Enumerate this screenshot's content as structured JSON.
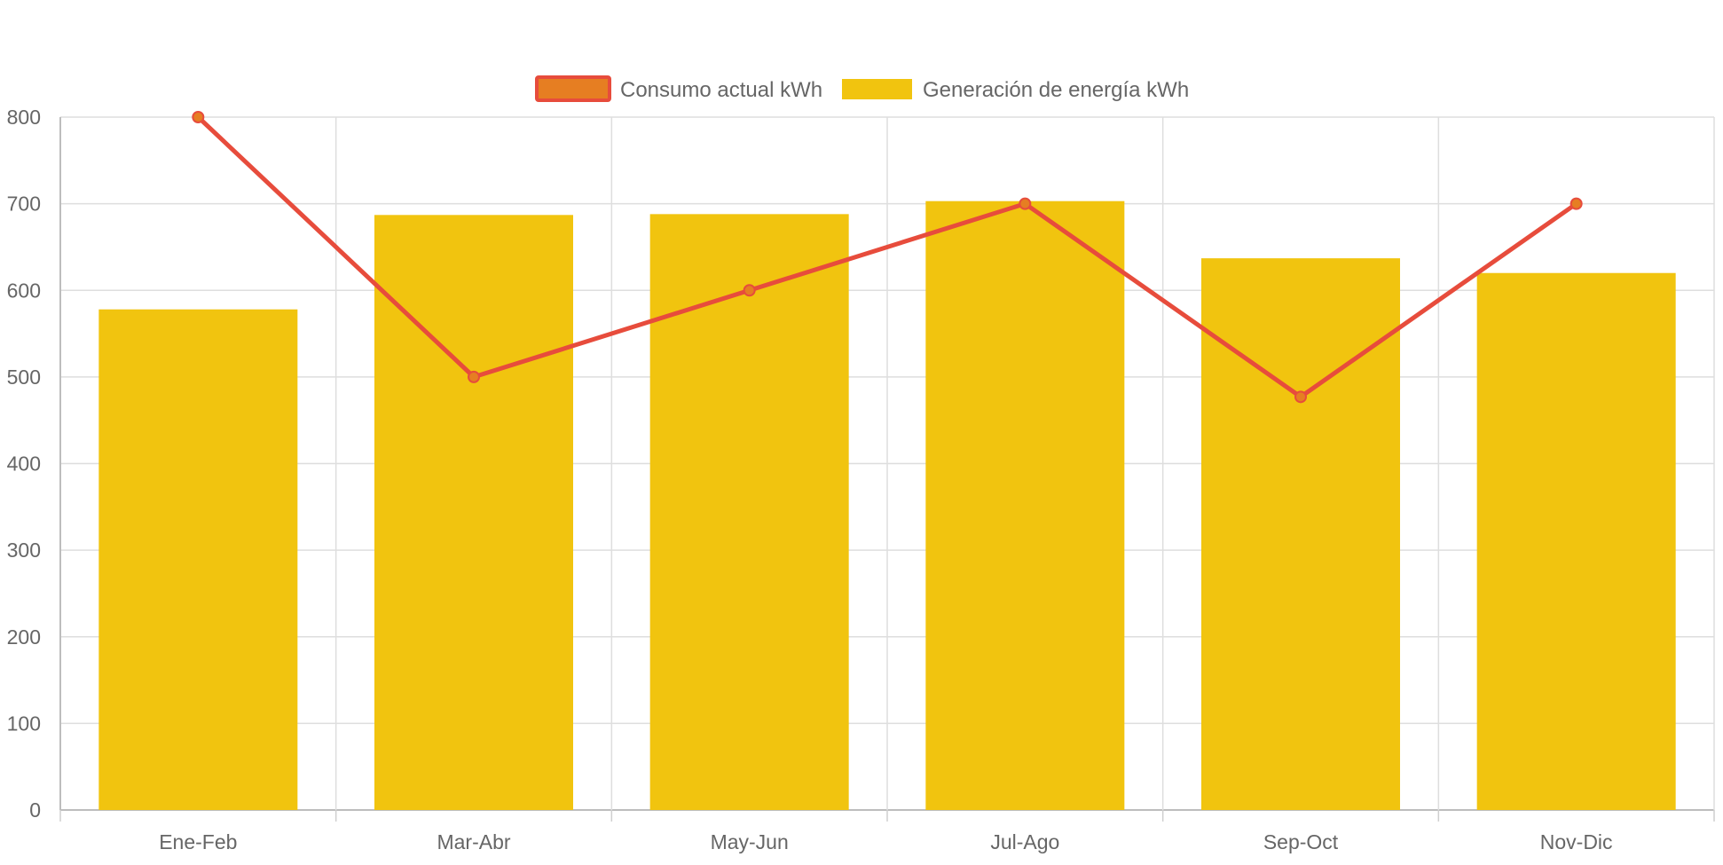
{
  "chart_data": {
    "type": "bar",
    "title": "",
    "xlabel": "",
    "ylabel": "",
    "categories": [
      "Ene-Feb",
      "Mar-Abr",
      "May-Jun",
      "Jul-Ago",
      "Sep-Oct",
      "Nov-Dic"
    ],
    "ylim": [
      0,
      800
    ],
    "yticks": [
      0,
      100,
      200,
      300,
      400,
      500,
      600,
      700,
      800
    ],
    "grid": true,
    "legend_position": "top-center",
    "series": [
      {
        "name": "Consumo actual kWh",
        "type": "line",
        "values": [
          800,
          500,
          600,
          700,
          477,
          700
        ],
        "color": "#E74C3C",
        "point_color": "#E67E22"
      },
      {
        "name": "Generación de energía kWh",
        "type": "bar",
        "values": [
          578,
          687,
          688,
          703,
          637,
          620
        ],
        "color": "#F1C40F"
      }
    ]
  }
}
